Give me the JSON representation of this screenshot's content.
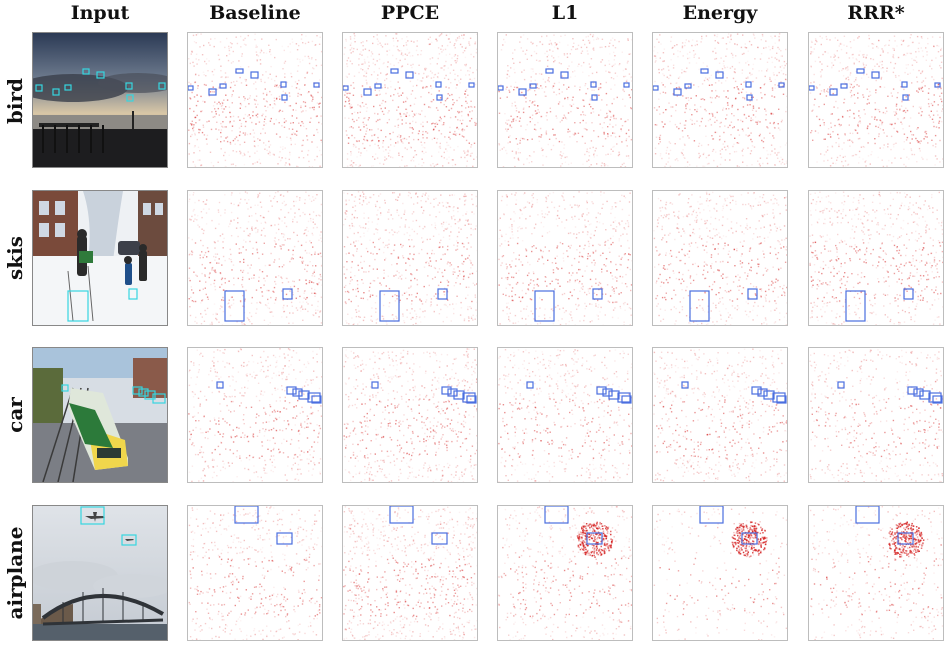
{
  "columns": [
    "Input",
    "Baseline",
    "PPCE",
    "L1",
    "Energy",
    "RRR*"
  ],
  "rows": [
    {
      "label": "bird"
    },
    {
      "label": "skis"
    },
    {
      "label": "car"
    },
    {
      "label": "airplane"
    }
  ],
  "colors": {
    "heat": "#d42020",
    "box_heatmap": "#4a6ee0",
    "box_input": "#36d6e0"
  }
}
